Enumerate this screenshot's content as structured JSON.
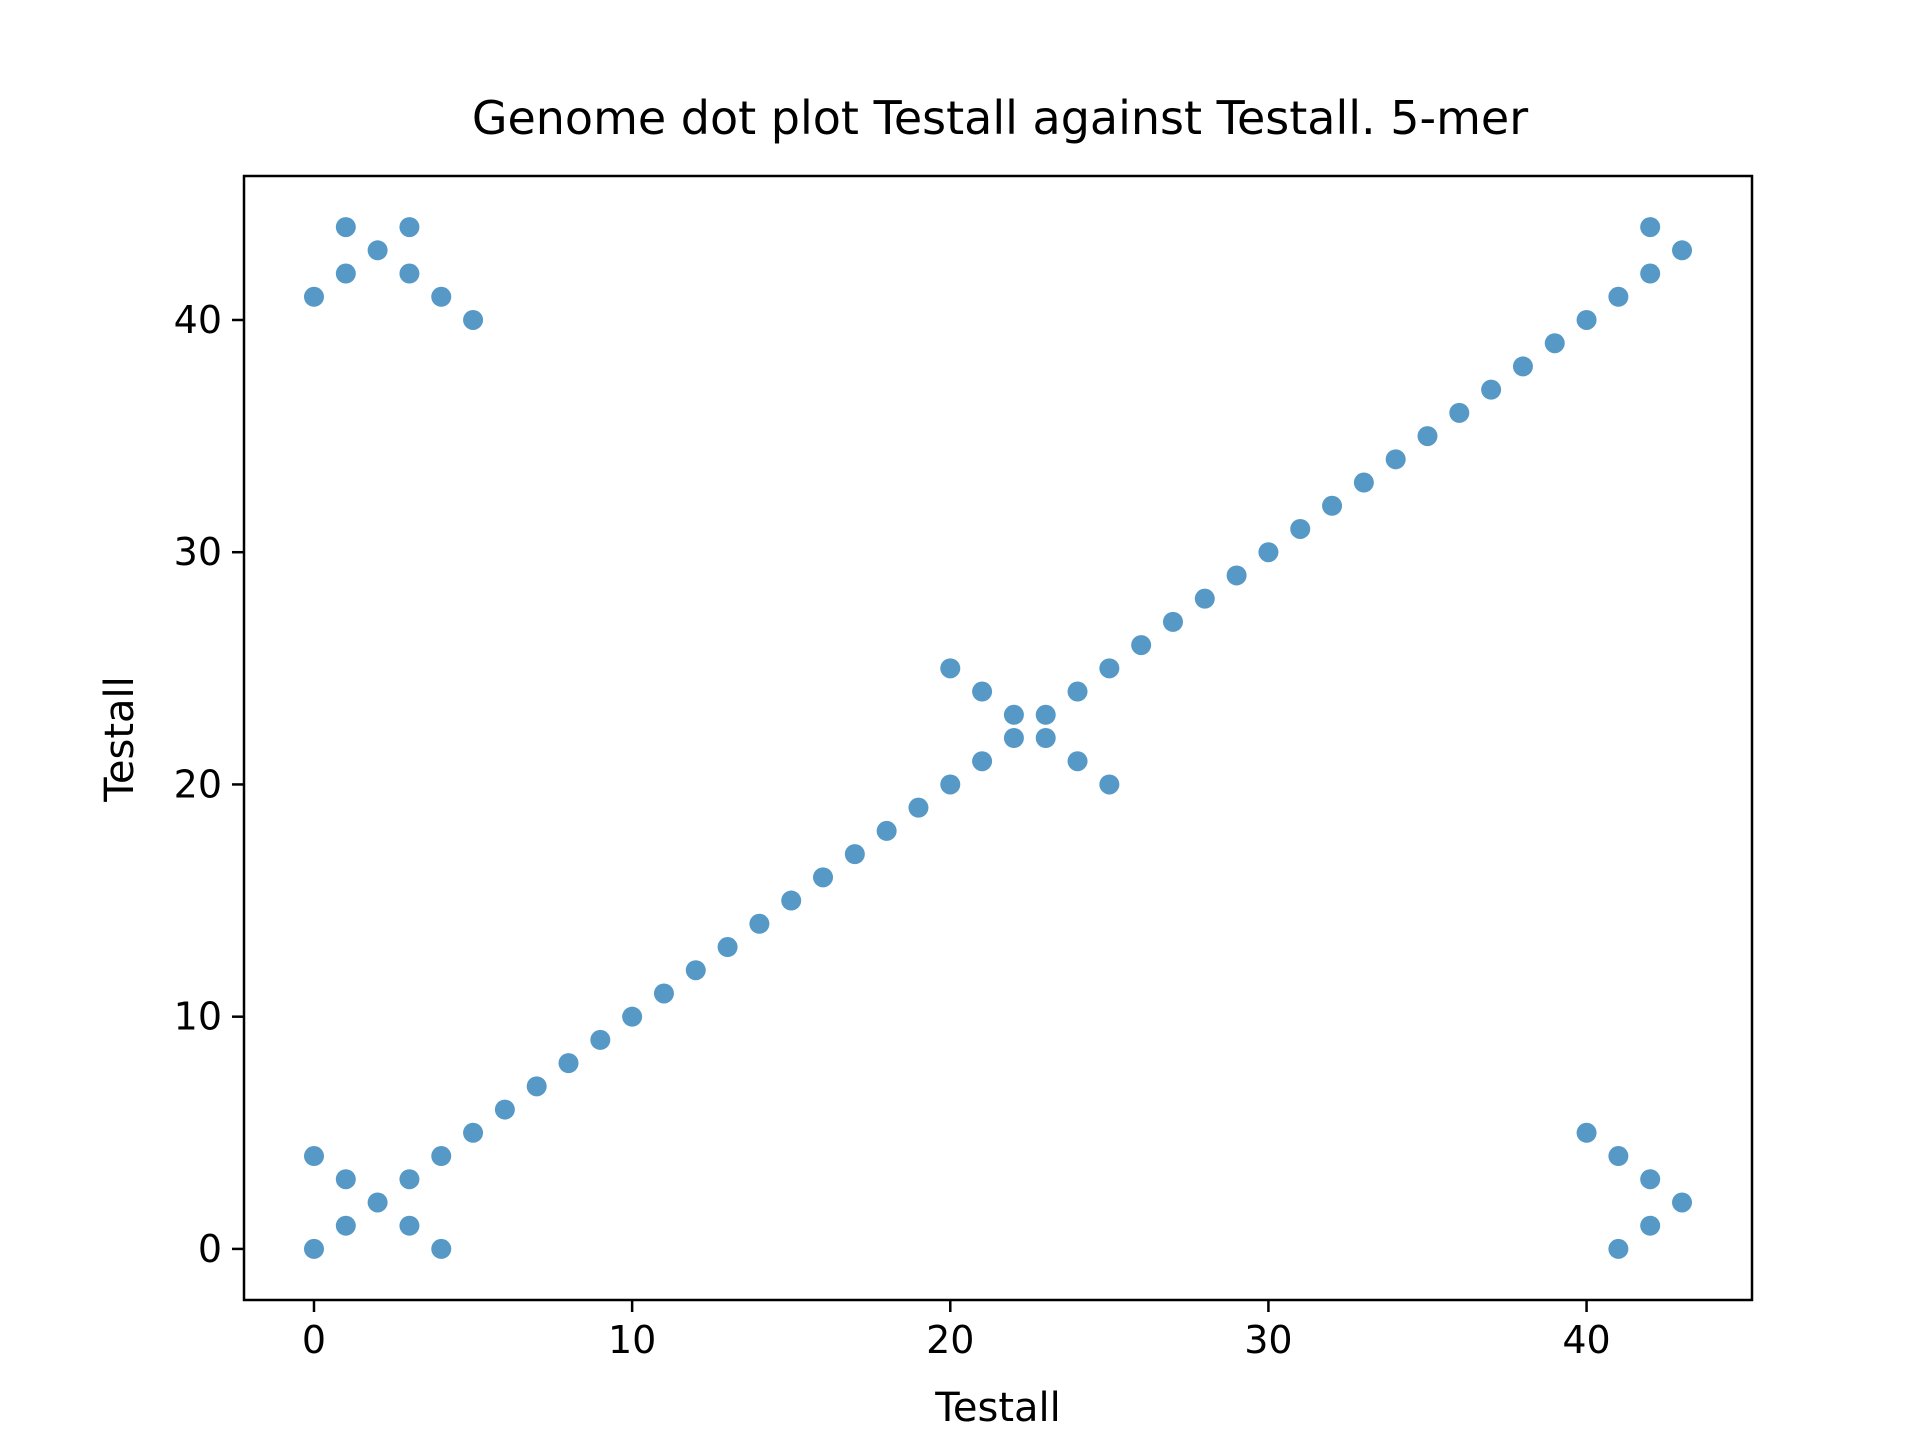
{
  "chart_data": {
    "type": "scatter",
    "title": "Genome dot plot Testall against Testall. 5-mer",
    "xlabel": "Testall",
    "ylabel": "Testall",
    "xlim": [
      -2.2,
      45.2
    ],
    "ylim": [
      -2.2,
      46.2
    ],
    "xticks": [
      0,
      10,
      20,
      30,
      40
    ],
    "yticks": [
      0,
      10,
      20,
      30,
      40
    ],
    "grid": false,
    "color": "#5799C6",
    "points": [
      [
        0,
        0
      ],
      [
        1,
        1
      ],
      [
        2,
        2
      ],
      [
        3,
        3
      ],
      [
        4,
        4
      ],
      [
        5,
        5
      ],
      [
        6,
        6
      ],
      [
        7,
        7
      ],
      [
        8,
        8
      ],
      [
        9,
        9
      ],
      [
        10,
        10
      ],
      [
        11,
        11
      ],
      [
        12,
        12
      ],
      [
        13,
        13
      ],
      [
        14,
        14
      ],
      [
        15,
        15
      ],
      [
        16,
        16
      ],
      [
        17,
        17
      ],
      [
        18,
        18
      ],
      [
        19,
        19
      ],
      [
        20,
        20
      ],
      [
        21,
        21
      ],
      [
        22,
        22
      ],
      [
        23,
        23
      ],
      [
        24,
        24
      ],
      [
        25,
        25
      ],
      [
        26,
        26
      ],
      [
        27,
        27
      ],
      [
        28,
        28
      ],
      [
        29,
        29
      ],
      [
        30,
        30
      ],
      [
        31,
        31
      ],
      [
        32,
        32
      ],
      [
        33,
        33
      ],
      [
        34,
        34
      ],
      [
        35,
        35
      ],
      [
        36,
        36
      ],
      [
        37,
        37
      ],
      [
        38,
        38
      ],
      [
        39,
        39
      ],
      [
        40,
        40
      ],
      [
        41,
        41
      ],
      [
        42,
        42
      ],
      [
        43,
        43
      ],
      [
        0,
        4
      ],
      [
        1,
        3
      ],
      [
        3,
        1
      ],
      [
        4,
        0
      ],
      [
        0,
        41
      ],
      [
        1,
        42
      ],
      [
        1,
        44
      ],
      [
        2,
        43
      ],
      [
        3,
        42
      ],
      [
        3,
        44
      ],
      [
        4,
        41
      ],
      [
        5,
        40
      ],
      [
        20,
        25
      ],
      [
        21,
        24
      ],
      [
        22,
        23
      ],
      [
        23,
        22
      ],
      [
        24,
        21
      ],
      [
        25,
        20
      ],
      [
        40,
        5
      ],
      [
        41,
        4
      ],
      [
        42,
        3
      ],
      [
        43,
        2
      ],
      [
        42,
        1
      ],
      [
        41,
        0
      ],
      [
        42,
        44
      ]
    ]
  }
}
